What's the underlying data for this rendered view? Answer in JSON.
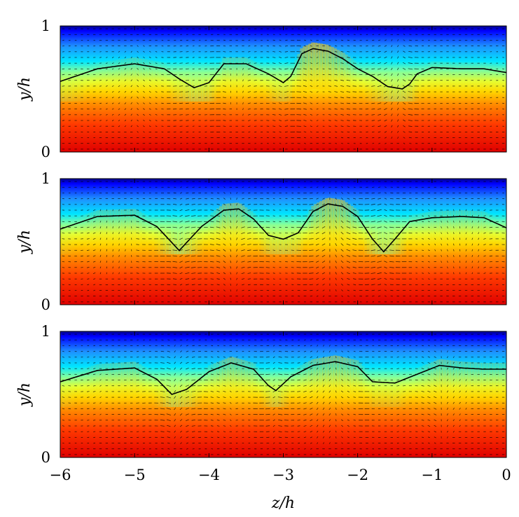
{
  "chart_data": {
    "type": "heatmap",
    "description_overlay": "quiver",
    "panels": [
      {
        "ylabel": "y/h",
        "ylim": [
          0,
          1
        ],
        "yticks": [
          "0",
          "1"
        ],
        "contour": {
          "z": [
            -6,
            -5.5,
            -5,
            -4.6,
            -4.4,
            -4.2,
            -4.0,
            -3.8,
            -3.5,
            -3.2,
            -3.0,
            -2.9,
            -2.75,
            -2.6,
            -2.4,
            -2.2,
            -2.0,
            -1.8,
            -1.6,
            -1.4,
            -1.3,
            -1.2,
            -1.0,
            -0.6,
            -0.3,
            0
          ],
          "y": [
            0.56,
            0.66,
            0.7,
            0.66,
            0.58,
            0.51,
            0.55,
            0.7,
            0.7,
            0.62,
            0.55,
            0.6,
            0.78,
            0.82,
            0.8,
            0.74,
            0.66,
            0.6,
            0.52,
            0.5,
            0.54,
            0.62,
            0.67,
            0.66,
            0.66,
            0.63
          ]
        },
        "high_y_regions": [
          {
            "z": -2.4,
            "w": 0.55
          },
          {
            "z": -5.0,
            "w": 1.2
          }
        ],
        "low_y_regions": [
          {
            "z": -3.0,
            "w": 0.4
          },
          {
            "z": -4.4,
            "w": 0.4
          }
        ]
      },
      {
        "ylabel": "y/h",
        "ylim": [
          0,
          1
        ],
        "yticks": [
          "0",
          "1"
        ],
        "contour": {
          "z": [
            -6,
            -5.5,
            -5,
            -4.7,
            -4.4,
            -4.1,
            -3.8,
            -3.6,
            -3.4,
            -3.2,
            -3.0,
            -2.8,
            -2.6,
            -2.4,
            -2.2,
            -2.0,
            -1.8,
            -1.65,
            -1.5,
            -1.3,
            -1.0,
            -0.6,
            -0.3,
            0
          ],
          "y": [
            0.6,
            0.7,
            0.71,
            0.62,
            0.43,
            0.62,
            0.75,
            0.76,
            0.68,
            0.55,
            0.52,
            0.57,
            0.74,
            0.8,
            0.78,
            0.7,
            0.52,
            0.42,
            0.52,
            0.66,
            0.69,
            0.7,
            0.69,
            0.61
          ]
        },
        "high_y_regions": [
          {
            "z": -3.7,
            "w": 0.45
          },
          {
            "z": -2.4,
            "w": 0.5
          },
          {
            "z": -5.2,
            "w": 1.0
          },
          {
            "z": -0.8,
            "w": 1.0
          }
        ],
        "low_y_regions": [
          {
            "z": -4.4,
            "w": 0.35
          },
          {
            "z": -1.65,
            "w": 0.35
          },
          {
            "z": -3.0,
            "w": 0.35
          }
        ]
      },
      {
        "ylabel": "y/h",
        "ylim": [
          0,
          1
        ],
        "yticks": [
          "0",
          "1"
        ],
        "contour": {
          "z": [
            -6,
            -5.5,
            -5,
            -4.7,
            -4.5,
            -4.3,
            -4.0,
            -3.7,
            -3.4,
            -3.2,
            -3.1,
            -2.9,
            -2.6,
            -2.3,
            -2.0,
            -1.8,
            -1.5,
            -1.2,
            -0.9,
            -0.6,
            -0.3,
            0
          ],
          "y": [
            0.6,
            0.69,
            0.71,
            0.62,
            0.5,
            0.54,
            0.68,
            0.75,
            0.7,
            0.57,
            0.53,
            0.64,
            0.73,
            0.76,
            0.72,
            0.6,
            0.59,
            0.66,
            0.73,
            0.71,
            0.7,
            0.7
          ]
        },
        "high_y_regions": [
          {
            "z": -3.7,
            "w": 0.5
          },
          {
            "z": -5.0,
            "w": 1.0
          },
          {
            "z": -2.3,
            "w": 0.5
          }
        ],
        "low_y_regions": [
          {
            "z": -4.5,
            "w": 0.35
          },
          {
            "z": -3.1,
            "w": 0.35
          }
        ]
      }
    ],
    "xlabel": "z/h",
    "xlim": [
      -6,
      0
    ],
    "xticks": [
      -6,
      -5,
      -4,
      -3,
      -2,
      -1,
      0
    ],
    "xtick_labels": [
      "−6",
      "−5",
      "−4",
      "−3",
      "−2",
      "−1",
      "0"
    ],
    "colormap": [
      "#00008b",
      "#0000ff",
      "#00bfff",
      "#00ffff",
      "#7fff7f",
      "#ffff00",
      "#ff8c00",
      "#ff3300",
      "#dd0000"
    ]
  }
}
